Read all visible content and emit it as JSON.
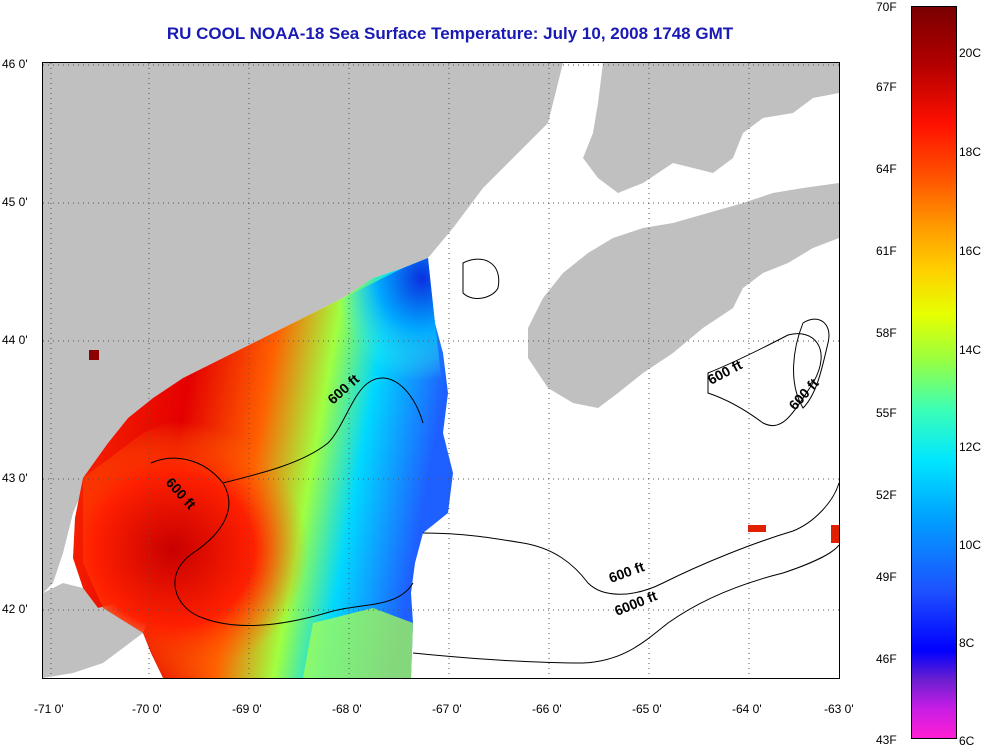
{
  "title": "RU COOL  NOAA-18  Sea Surface Temperature:  July 10, 2008 1748 GMT",
  "lat_labels": [
    "46 0'",
    "45 0'",
    "44 0'",
    "43 0'",
    "42 0'"
  ],
  "lon_labels": [
    "-71 0'",
    "-70 0'",
    "-69 0'",
    "-68 0'",
    "-67 0'",
    "-66 0'",
    "-65 0'",
    "-64 0'",
    "-63 0'"
  ],
  "colorbar": {
    "fahrenheit": [
      "70F",
      "67F",
      "64F",
      "61F",
      "58F",
      "55F",
      "52F",
      "49F",
      "46F",
      "43F"
    ],
    "celsius": [
      "20C",
      "18C",
      "16C",
      "14C",
      "12C",
      "10C",
      "8C",
      "6C"
    ]
  },
  "contour_labels": {
    "c1": "600 ft",
    "c2": "600 ft",
    "c3": "600 ft",
    "c4": "600 ft",
    "c5": "600 ft",
    "c6": "6000 ft"
  },
  "colors": {
    "land": "#c0c0c0",
    "title": "#1a1ab4",
    "warm": "#e60000",
    "cool": "#1e64ff"
  }
}
